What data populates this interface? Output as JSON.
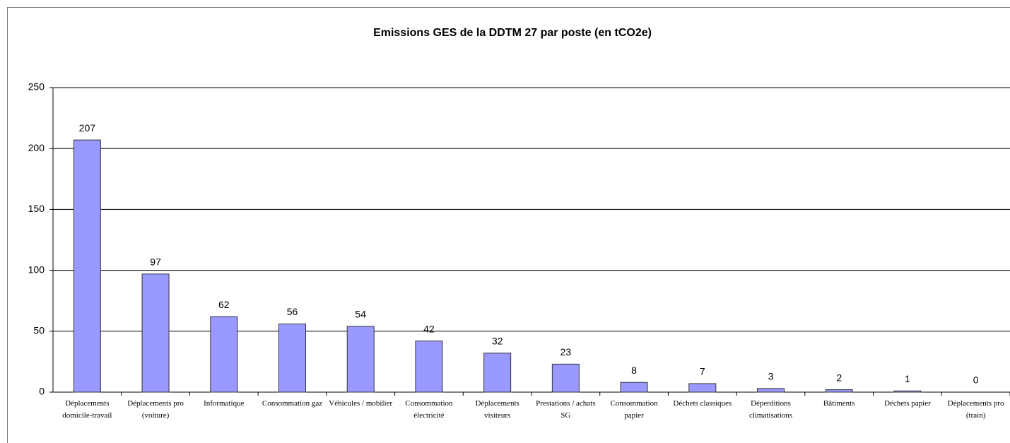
{
  "chart_data": {
    "type": "bar",
    "title": "Emissions GES de la DDTM 27 par poste (en tCO2e)",
    "categories": [
      "Déplacements domicile-travail",
      "Déplacements pro (voiture)",
      "Informatique",
      "Consommation gaz",
      "Véhicules / mobilier",
      "Consommation électricité",
      "Déplacements visiteurs",
      "Prestations / achats SG",
      "Consommation papier",
      "Déchets classiques",
      "Déperditions climatisations",
      "Bâtiments",
      "Déchets papier",
      "Déplacements pro (train)"
    ],
    "values": [
      207,
      97,
      62,
      56,
      54,
      42,
      32,
      23,
      8,
      7,
      3,
      2,
      1,
      0
    ],
    "color": "#9999ff",
    "ylim": [
      0,
      250
    ],
    "yticks": [
      0,
      50,
      100,
      150,
      200,
      250
    ],
    "grid": true
  }
}
